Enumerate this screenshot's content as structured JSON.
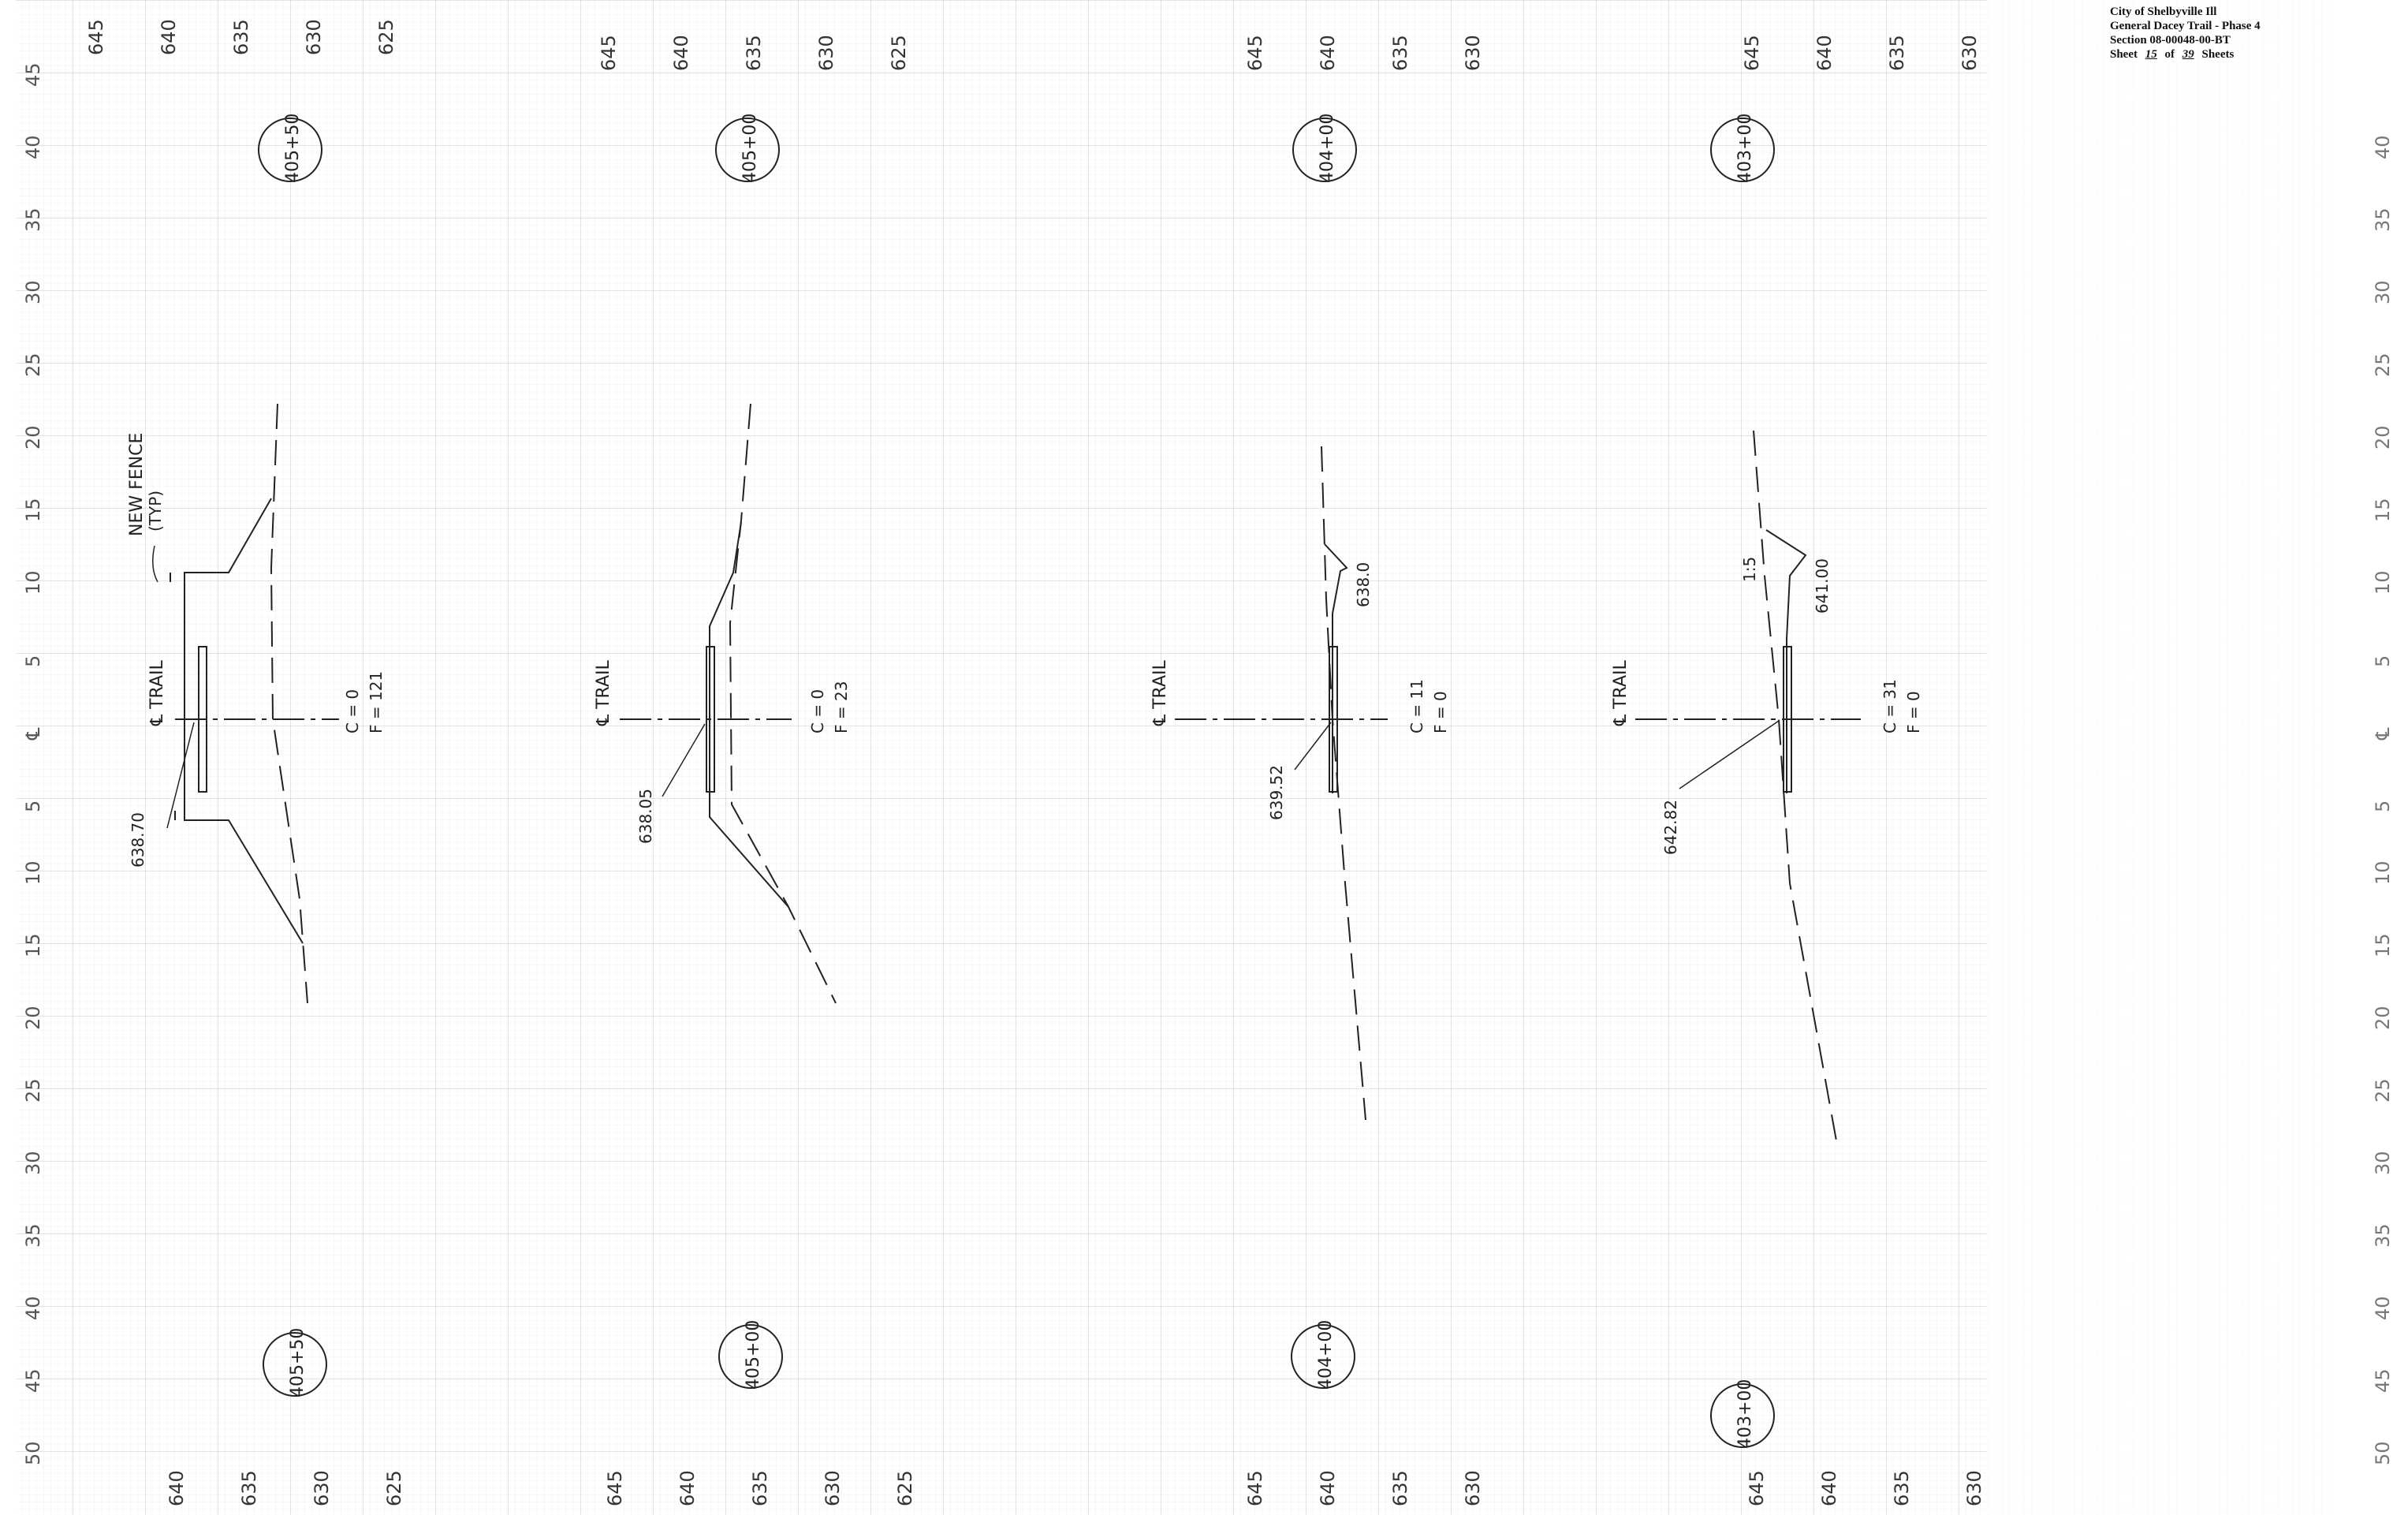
{
  "title_block": {
    "line1": "City of Shelbyville Ill",
    "line2": "General Dacey Trail - Phase 4",
    "line3": "Section 08-00048-00-BT",
    "sheet_prefix": "Sheet",
    "sheet_number": "15",
    "sheet_of": "of",
    "sheet_total": "39",
    "sheet_suffix": "Sheets"
  },
  "offset_ticks": [
    "45",
    "40",
    "35",
    "30",
    "25",
    "20",
    "15",
    "10",
    "5",
    "℄",
    "5",
    "10",
    "15",
    "20",
    "25",
    "30",
    "35",
    "40",
    "45",
    "50"
  ],
  "right_offset_ticks": [
    "40",
    "35",
    "30",
    "25",
    "20",
    "15",
    "10",
    "5",
    "℄",
    "5",
    "10",
    "15",
    "20",
    "25",
    "30",
    "35",
    "40",
    "45",
    "50"
  ],
  "sections": [
    {
      "station_top": "405+50",
      "station_bottom": "405+50",
      "elev_top": [
        "645",
        "640",
        "635",
        "630",
        "625"
      ],
      "elev_bottom": [
        "640",
        "635",
        "630",
        "625"
      ],
      "trail_label": "℄ TRAIL",
      "cut": "C = 0",
      "fill": "F = 121",
      "elevation_label": "638.70",
      "notes": [
        "NEW FENCE",
        "(TYP)"
      ]
    },
    {
      "station_top": "405+00",
      "station_bottom": "405+00",
      "elev_top": [
        "645",
        "640",
        "635",
        "630",
        "625"
      ],
      "elev_bottom": [
        "645",
        "640",
        "635",
        "630",
        "625"
      ],
      "trail_label": "℄ TRAIL",
      "cut": "C = 0",
      "fill": "F = 23",
      "elevation_label": "638.05",
      "notes": []
    },
    {
      "station_top": "404+00",
      "station_bottom": "404+00",
      "elev_top": [
        "645",
        "640",
        "635",
        "630"
      ],
      "elev_bottom": [
        "645",
        "640",
        "635",
        "630"
      ],
      "trail_label": "℄ TRAIL",
      "cut": "C = 11",
      "fill": "F = 0",
      "elevation_label": "639.52",
      "notes": [
        "638.0"
      ]
    },
    {
      "station_top": "403+00",
      "station_bottom": "403+00",
      "elev_top": [
        "645",
        "640",
        "635",
        "630"
      ],
      "elev_bottom": [
        "645",
        "640",
        "635",
        "630"
      ],
      "trail_label": "℄ TRAIL",
      "cut": "C = 31",
      "fill": "F = 0",
      "elevation_label": "642.82",
      "notes": [
        "1:5",
        "641.00"
      ]
    }
  ]
}
